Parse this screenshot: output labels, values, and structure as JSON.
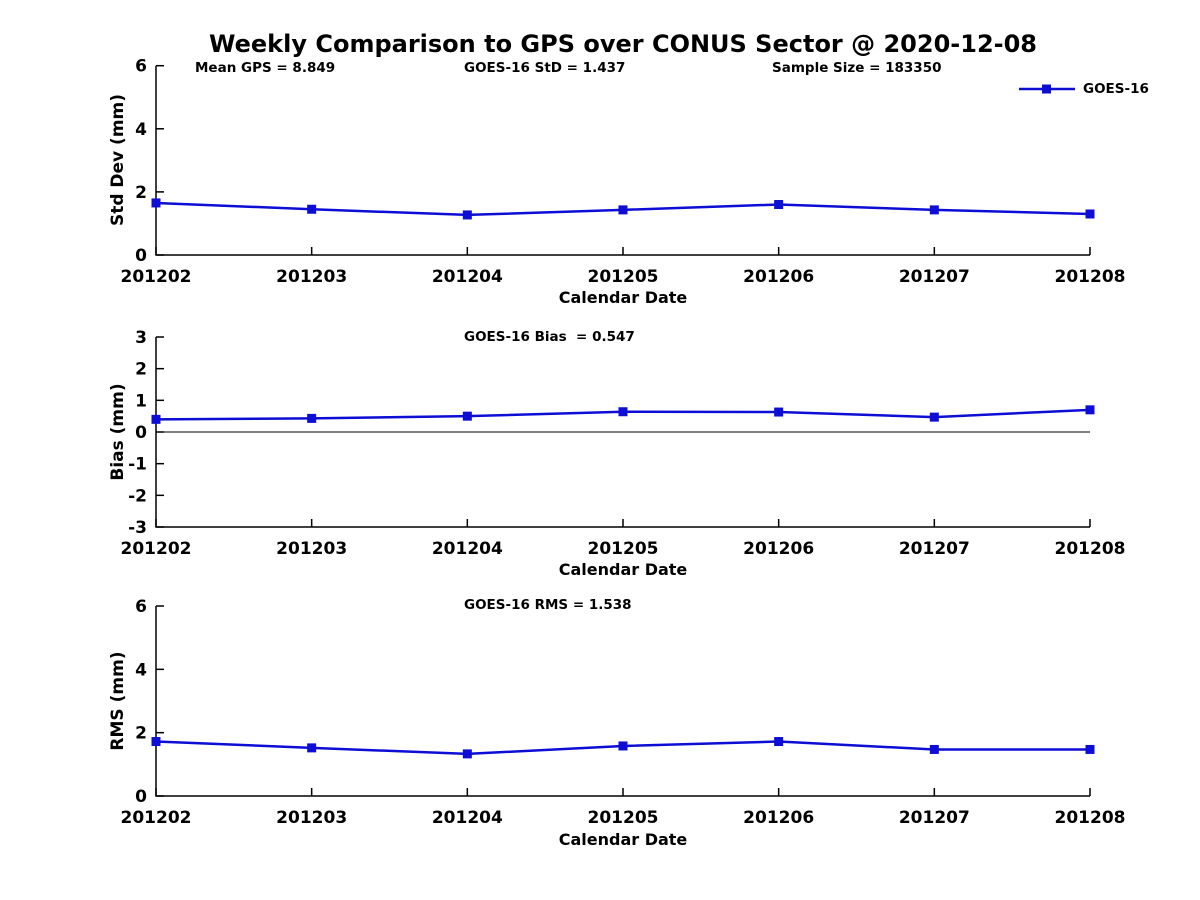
{
  "title": "Weekly Comparison to GPS over CONUS Sector @ 2020-12-08",
  "legend": {
    "label": "GOES-16",
    "color": "#0d0dd6"
  },
  "colors": {
    "series": "#0d0dd6",
    "axis": "#000000",
    "background": "#ffffff"
  },
  "chart_data": [
    {
      "type": "line",
      "title": "",
      "x": [
        "201202",
        "201203",
        "201204",
        "201205",
        "201206",
        "201207",
        "201208"
      ],
      "series": [
        {
          "name": "GOES-16",
          "color": "#0d0dd6",
          "marker": "square",
          "values": [
            1.65,
            1.45,
            1.27,
            1.43,
            1.6,
            1.43,
            1.3
          ]
        }
      ],
      "xlabel": "Calendar Date",
      "ylabel": "Std Dev (mm)",
      "ylim": [
        0,
        6
      ],
      "yticks": [
        0,
        2,
        4,
        6
      ],
      "grid": false,
      "legend_position": "top-right",
      "annotations": [
        "Mean GPS = 8.849",
        "GOES-16 StD = 1.437",
        "Sample Size = 183350"
      ]
    },
    {
      "type": "line",
      "title": "",
      "x": [
        "201202",
        "201203",
        "201204",
        "201205",
        "201206",
        "201207",
        "201208"
      ],
      "series": [
        {
          "name": "GOES-16",
          "color": "#0d0dd6",
          "marker": "square",
          "values": [
            0.4,
            0.43,
            0.5,
            0.64,
            0.63,
            0.47,
            0.7
          ]
        }
      ],
      "xlabel": "Calendar Date",
      "ylabel": "Bias (mm)",
      "ylim": [
        -3,
        3
      ],
      "yticks": [
        -3,
        -2,
        -1,
        0,
        1,
        2,
        3
      ],
      "zero_line": true,
      "grid": false,
      "annotations": [
        "GOES-16 Bias  = 0.547"
      ]
    },
    {
      "type": "line",
      "title": "",
      "x": [
        "201202",
        "201203",
        "201204",
        "201205",
        "201206",
        "201207",
        "201208"
      ],
      "series": [
        {
          "name": "GOES-16",
          "color": "#0d0dd6",
          "marker": "square",
          "values": [
            1.72,
            1.52,
            1.33,
            1.58,
            1.72,
            1.47,
            1.47
          ]
        }
      ],
      "xlabel": "Calendar Date",
      "ylabel": "RMS (mm)",
      "ylim": [
        0,
        6
      ],
      "yticks": [
        0,
        2,
        4,
        6
      ],
      "grid": false,
      "annotations": [
        "GOES-16 RMS = 1.538"
      ]
    }
  ]
}
